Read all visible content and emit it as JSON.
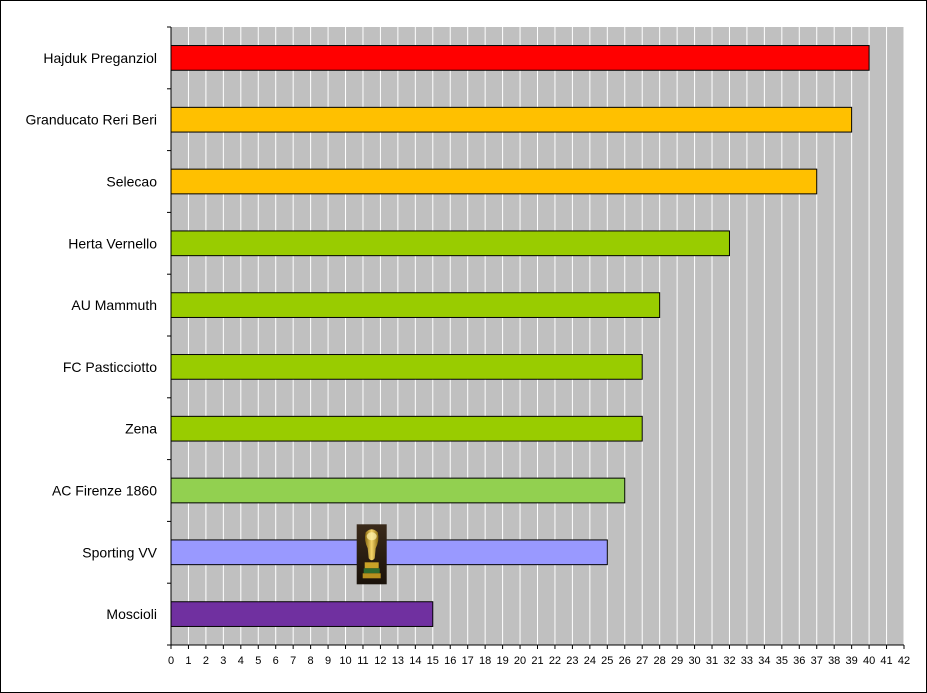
{
  "chart_data": {
    "type": "bar",
    "orientation": "horizontal",
    "categories": [
      "Hajduk Preganziol",
      "Granducato Reri Beri",
      "Selecao",
      "Herta Vernello",
      "AU Mammuth",
      "FC Pasticciotto",
      "Zena",
      "AC Firenze 1860",
      "Sporting VV",
      "Moscioli"
    ],
    "values": [
      40,
      39,
      37,
      32,
      28,
      27,
      27,
      26,
      25,
      15
    ],
    "bar_colors": [
      "#ff0000",
      "#ffc000",
      "#ffc000",
      "#99cc00",
      "#99cc00",
      "#99cc00",
      "#99cc00",
      "#92d050",
      "#9999ff",
      "#7030a0"
    ],
    "xlim": [
      0,
      42
    ],
    "x_ticks": [
      "0",
      "1",
      "2",
      "3",
      "4",
      "5",
      "6",
      "7",
      "8",
      "9",
      "10",
      "11",
      "12",
      "13",
      "14",
      "15",
      "16",
      "17",
      "18",
      "19",
      "20",
      "21",
      "22",
      "23",
      "24",
      "25",
      "26",
      "27",
      "28",
      "29",
      "30",
      "31",
      "32",
      "33",
      "34",
      "35",
      "36",
      "37",
      "38",
      "39",
      "40",
      "41",
      "42"
    ],
    "grid": "vertical",
    "plot_background": "#c0c0c0",
    "grid_color": "#ffffff",
    "legend": "none",
    "annotations": [
      {
        "type": "image",
        "icon": "trophy-icon",
        "category": "Sporting VV",
        "value": 11.5
      }
    ]
  }
}
